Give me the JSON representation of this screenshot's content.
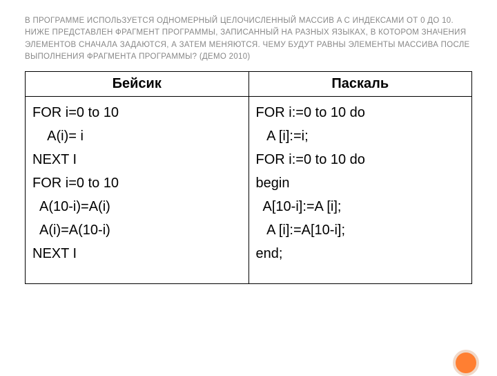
{
  "heading": "В ПРОГРАММЕ ИСПОЛЬЗУЕТСЯ ОДНОМЕРНЫЙ ЦЕЛОЧИСЛЕННЫЙ МАССИВ A С ИНДЕКСАМИ ОТ 0 ДО 10. НИЖЕ ПРЕДСТАВЛЕН ФРАГМЕНТ ПРОГРАММЫ, ЗАПИСАННЫЙ НА РАЗНЫХ ЯЗЫКАХ, В КОТОРОМ ЗНАЧЕНИЯ ЭЛЕМЕНТОВ СНАЧАЛА ЗАДАЮТСЯ, А ЗАТЕМ МЕНЯЮТСЯ. ЧЕМУ БУДУТ РАВНЫ ЭЛЕМЕНТЫ МАССИВА ПОСЛЕ ВЫПОЛНЕНИЯ ФРАГМЕНТА ПРОГРАММЫ?  (ДЕМО 2010)",
  "table": {
    "columns": [
      "Бейсик",
      "Паскаль"
    ],
    "col1_lines": [
      "FOR i=0 to 10",
      "    A(i)= i",
      "NEXT I",
      "FOR i=0 to 10",
      "  A(10-i)=A(i)",
      "  A(i)=A(10-i)",
      "NEXT I"
    ],
    "col2_lines": [
      "FOR i:=0 to 10 do",
      "   A [i]:=i;",
      "FOR i:=0 to 10 do",
      "begin",
      "  A[10-i]:=A [i];",
      "   A [i]:=A[10-i];",
      "end;"
    ]
  },
  "heading_color": "#888888",
  "text_color": "#000000",
  "border_color": "#000000",
  "background_color": "#ffffff",
  "accent_color": "#ff7f32",
  "accent_border": "#f0d8c8",
  "heading_fontsize": 11.5,
  "body_fontsize": 20,
  "header_fontsize": 20
}
